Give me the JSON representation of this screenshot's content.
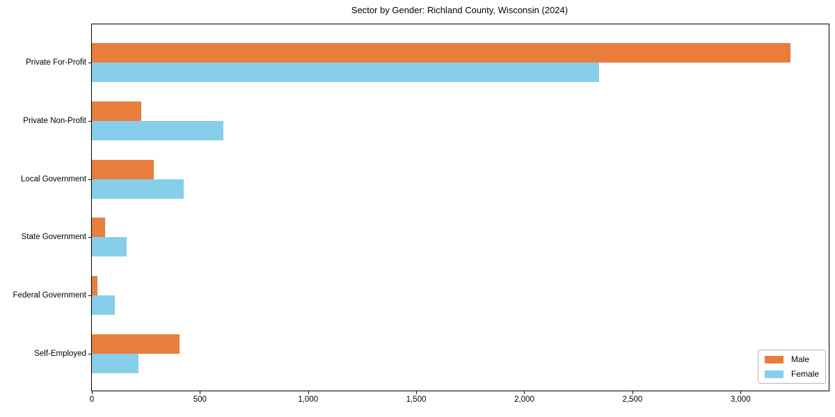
{
  "chart_data": {
    "type": "bar",
    "orientation": "horizontal",
    "title": "Sector by Gender: Richland County, Wisconsin (2024)",
    "categories": [
      "Private For-Profit",
      "Private Non-Profit",
      "Local Government",
      "State Government",
      "Federal Government",
      "Self-Employed"
    ],
    "series": [
      {
        "name": "Male",
        "color": "#e87d3c",
        "values": [
          3230,
          230,
          286,
          62,
          26,
          406
        ]
      },
      {
        "name": "Female",
        "color": "#87ceeb",
        "values": [
          2345,
          608,
          424,
          161,
          106,
          215
        ]
      }
    ],
    "xlabel": "",
    "ylabel": "",
    "xlim": [
      0,
      3408
    ],
    "xticks": {
      "values": [
        0,
        500,
        1000,
        1500,
        2000,
        2500,
        3000
      ],
      "labels": [
        "0",
        "500",
        "1,000",
        "1,500",
        "2,000",
        "2,500",
        "3,000"
      ]
    },
    "grid": false,
    "legend": {
      "position": "lower right"
    }
  }
}
